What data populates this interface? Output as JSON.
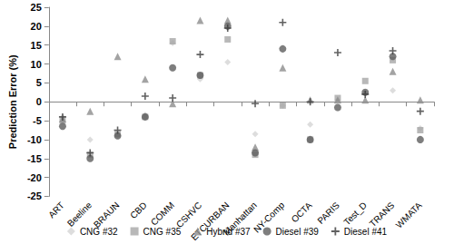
{
  "chart_data": {
    "type": "scatter",
    "y_label": "Prediction Error (%)",
    "categories": [
      "ART",
      "Beeline",
      "BRAUN",
      "CBD",
      "COMM",
      "CSHVC",
      "ETCURBAN",
      "Manhattan",
      "NY-Comp",
      "OCTA",
      "PARIS",
      "Test_D",
      "TRANS",
      "WMATA"
    ],
    "ylim": [
      -25,
      25
    ],
    "yticks": [
      -25,
      -20,
      -15,
      -10,
      -5,
      0,
      5,
      10,
      15,
      20,
      25
    ],
    "grid": false,
    "legend": "bottom",
    "series": [
      {
        "name": "CNG #32",
        "color": "#d4d4d4",
        "marker": "diamond",
        "values": [
          -4,
          -10,
          -9,
          -3.5,
          15.5,
          6,
          10.5,
          -8.5,
          -1,
          -6,
          0.5,
          2.5,
          3,
          -7
        ]
      },
      {
        "name": "CNG #35",
        "color": "#a6a6a6",
        "marker": "square",
        "values": [
          -5,
          -14,
          -8.5,
          -4,
          16,
          7,
          16.5,
          -14,
          -1,
          -10,
          1,
          5.5,
          11,
          -7.5
        ]
      },
      {
        "name": "Hybrid #37",
        "color": "#8c8c8c",
        "marker": "triangle",
        "values": [
          -4.5,
          -2.5,
          12,
          6,
          -0.5,
          21.5,
          21.5,
          -12,
          9,
          0.5,
          0.5,
          0.5,
          8,
          0.5
        ]
      },
      {
        "name": "Diesel #39",
        "color": "#5e5e5e",
        "marker": "circle",
        "values": [
          -6.5,
          -15,
          -9,
          -4,
          9,
          7,
          20,
          -13.5,
          14,
          -10,
          -1.5,
          2.5,
          12,
          -10
        ]
      },
      {
        "name": "Diesel #41",
        "color": "#3a3a3a",
        "marker": "plus",
        "values": [
          -4,
          -13.5,
          -7.5,
          1.5,
          1,
          12.5,
          19.5,
          -0.5,
          21,
          0,
          13,
          2,
          13.5,
          -2.5
        ]
      }
    ]
  }
}
